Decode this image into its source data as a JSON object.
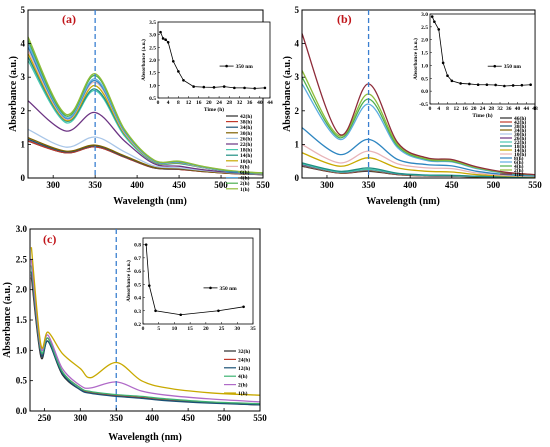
{
  "colors": {
    "dash_line": "#3a7fd0",
    "panel_label": "#c0151a"
  },
  "chart_data": [
    {
      "type": "line",
      "panel_label": "(a)",
      "xlabel": "Wavelength (nm)",
      "ylabel": "Absorbance (a.u.)",
      "xlim": [
        270,
        550
      ],
      "ylim": [
        0,
        5
      ],
      "xticks": [
        300,
        350,
        400,
        450,
        500,
        550
      ],
      "yticks": [
        0,
        1,
        2,
        3,
        4,
        5
      ],
      "marker_wavelength": 350,
      "legend_placement": "right",
      "series": [
        {
          "name": "42(h)",
          "color": "#2b2b2b",
          "values": [
            1.1,
            0.75,
            0.93,
            0.62,
            0.3,
            0.26,
            0.19,
            0.13,
            0.1
          ]
        },
        {
          "name": "38(h)",
          "color": "#c0392b",
          "values": [
            1.1,
            0.75,
            0.93,
            0.62,
            0.3,
            0.26,
            0.19,
            0.13,
            0.1
          ]
        },
        {
          "name": "34(h)",
          "color": "#1a5276",
          "values": [
            1.15,
            0.78,
            0.96,
            0.64,
            0.31,
            0.27,
            0.2,
            0.14,
            0.1
          ]
        },
        {
          "name": "30(h)",
          "color": "#7f6000",
          "values": [
            1.2,
            0.8,
            0.98,
            0.66,
            0.32,
            0.28,
            0.2,
            0.14,
            0.11
          ]
        },
        {
          "name": "26(h)",
          "color": "#a9c6e8",
          "values": [
            1.45,
            0.92,
            1.22,
            0.78,
            0.36,
            0.3,
            0.22,
            0.15,
            0.11
          ]
        },
        {
          "name": "22(h)",
          "color": "#6c3483",
          "values": [
            2.3,
            1.4,
            1.95,
            1.1,
            0.43,
            0.35,
            0.24,
            0.16,
            0.12
          ]
        },
        {
          "name": "18(h)",
          "color": "#48c9b0",
          "values": [
            3.5,
            1.65,
            2.6,
            1.25,
            0.47,
            0.43,
            0.3,
            0.18,
            0.13
          ]
        },
        {
          "name": "14(h)",
          "color": "#1f8f84",
          "values": [
            3.6,
            1.7,
            2.65,
            1.3,
            0.48,
            0.44,
            0.3,
            0.18,
            0.13
          ]
        },
        {
          "name": "10(h)",
          "color": "#c8a900",
          "values": [
            3.7,
            1.72,
            2.75,
            1.32,
            0.49,
            0.45,
            0.31,
            0.19,
            0.13
          ]
        },
        {
          "name": "8(h)",
          "color": "#e8b4b8",
          "values": [
            3.8,
            1.75,
            2.85,
            1.35,
            0.5,
            0.46,
            0.31,
            0.19,
            0.14
          ]
        },
        {
          "name": "6(h)",
          "color": "#2e86c1",
          "values": [
            3.9,
            1.78,
            2.9,
            1.38,
            0.51,
            0.47,
            0.32,
            0.19,
            0.14
          ]
        },
        {
          "name": "4(h)",
          "color": "#5dade2",
          "values": [
            4.0,
            1.8,
            2.95,
            1.4,
            0.52,
            0.48,
            0.32,
            0.2,
            0.14
          ]
        },
        {
          "name": "2(h)",
          "color": "#4caf50",
          "values": [
            4.1,
            1.85,
            3.05,
            1.43,
            0.53,
            0.49,
            0.33,
            0.2,
            0.15
          ]
        },
        {
          "name": "1(h)",
          "color": "#8fbc3a",
          "values": [
            4.2,
            1.9,
            3.1,
            1.45,
            0.54,
            0.5,
            0.34,
            0.21,
            0.15
          ]
        }
      ],
      "x": [
        270,
        315,
        350,
        385,
        420,
        450,
        480,
        515,
        550
      ],
      "inset": {
        "xlabel": "Time (h)",
        "ylabel": "Absorbance (a.u.)",
        "xlim": [
          0,
          44
        ],
        "ylim": [
          0.5,
          3.5
        ],
        "xticks": [
          0,
          4,
          8,
          12,
          16,
          20,
          24,
          28,
          32,
          36,
          40,
          44
        ],
        "yticks": [
          0.5,
          1.0,
          1.5,
          2.0,
          2.5,
          3.0,
          3.5
        ],
        "legend": "350 nm",
        "x": [
          1,
          2,
          3,
          4,
          6,
          8,
          10,
          14,
          18,
          22,
          26,
          30,
          34,
          38,
          42
        ],
        "values": [
          3.1,
          2.85,
          2.8,
          2.7,
          1.95,
          1.55,
          1.2,
          0.95,
          0.93,
          0.92,
          0.95,
          0.9,
          0.9,
          0.88,
          0.9
        ]
      }
    },
    {
      "type": "line",
      "panel_label": "(b)",
      "xlabel": "Wavelength (nm)",
      "ylabel": "Absorbance (a.u.)",
      "xlim": [
        270,
        550
      ],
      "ylim": [
        0,
        5
      ],
      "xticks": [
        300,
        350,
        400,
        450,
        500,
        550
      ],
      "yticks": [
        0,
        1,
        2,
        3,
        4,
        5
      ],
      "marker_wavelength": 350,
      "legend_placement": "right",
      "series": [
        {
          "name": "46(h)",
          "color": "#2b2b2b",
          "values": [
            0.35,
            0.15,
            0.2,
            0.1,
            0.06,
            0.05,
            0.04,
            0.03,
            0.02
          ]
        },
        {
          "name": "42(h)",
          "color": "#c0392b",
          "values": [
            0.36,
            0.15,
            0.21,
            0.1,
            0.06,
            0.05,
            0.04,
            0.03,
            0.02
          ]
        },
        {
          "name": "38(h)",
          "color": "#1a5276",
          "values": [
            0.37,
            0.16,
            0.22,
            0.11,
            0.07,
            0.06,
            0.04,
            0.03,
            0.02
          ]
        },
        {
          "name": "34(h)",
          "color": "#7f6000",
          "values": [
            0.38,
            0.16,
            0.23,
            0.11,
            0.07,
            0.06,
            0.04,
            0.03,
            0.02
          ]
        },
        {
          "name": "30(h)",
          "color": "#a9c6e8",
          "values": [
            0.39,
            0.17,
            0.24,
            0.12,
            0.07,
            0.06,
            0.05,
            0.03,
            0.02
          ]
        },
        {
          "name": "26(h)",
          "color": "#6c3483",
          "values": [
            0.4,
            0.17,
            0.25,
            0.12,
            0.08,
            0.07,
            0.05,
            0.03,
            0.02
          ]
        },
        {
          "name": "22(h)",
          "color": "#48c9b0",
          "values": [
            0.42,
            0.18,
            0.26,
            0.13,
            0.08,
            0.07,
            0.05,
            0.04,
            0.03
          ]
        },
        {
          "name": "18(h)",
          "color": "#1f8f84",
          "values": [
            0.45,
            0.2,
            0.3,
            0.14,
            0.09,
            0.08,
            0.05,
            0.04,
            0.03
          ]
        },
        {
          "name": "14(h)",
          "color": "#c8a900",
          "values": [
            0.75,
            0.35,
            0.6,
            0.3,
            0.2,
            0.18,
            0.1,
            0.06,
            0.04
          ]
        },
        {
          "name": "10(h)",
          "color": "#e8b4b8",
          "values": [
            1.0,
            0.45,
            0.8,
            0.42,
            0.3,
            0.28,
            0.15,
            0.08,
            0.05
          ]
        },
        {
          "name": "8(h)",
          "color": "#2e86c1",
          "values": [
            1.5,
            0.7,
            1.15,
            0.55,
            0.4,
            0.36,
            0.2,
            0.1,
            0.06
          ]
        },
        {
          "name": "6(h)",
          "color": "#5dade2",
          "values": [
            2.8,
            1.15,
            2.2,
            0.9,
            0.52,
            0.48,
            0.28,
            0.14,
            0.08
          ]
        },
        {
          "name": "4(h)",
          "color": "#4caf50",
          "values": [
            3.0,
            1.2,
            2.35,
            0.95,
            0.55,
            0.5,
            0.3,
            0.15,
            0.09
          ]
        },
        {
          "name": "2(h)",
          "color": "#8fbc3a",
          "values": [
            3.2,
            1.25,
            2.5,
            1.0,
            0.57,
            0.52,
            0.31,
            0.16,
            0.1
          ]
        },
        {
          "name": "1(h)",
          "color": "#8e2c3a",
          "values": [
            4.3,
            1.3,
            2.8,
            1.05,
            0.6,
            0.55,
            0.33,
            0.17,
            0.1
          ]
        }
      ],
      "x": [
        270,
        315,
        350,
        385,
        420,
        450,
        480,
        515,
        550
      ],
      "inset": {
        "xlabel": "Time (h)",
        "ylabel": "Absorbance (a.u.)",
        "xlim": [
          0,
          48
        ],
        "ylim": [
          -0.5,
          3.0
        ],
        "xticks": [
          0,
          4,
          8,
          12,
          16,
          20,
          24,
          28,
          32,
          36,
          40,
          44,
          48
        ],
        "yticks": [
          -0.5,
          0.0,
          0.5,
          1.0,
          1.5,
          2.0,
          2.5,
          3.0
        ],
        "legend": "350 nm",
        "x": [
          1,
          2,
          4,
          6,
          8,
          10,
          14,
          18,
          22,
          26,
          30,
          34,
          38,
          42,
          46
        ],
        "values": [
          2.9,
          2.7,
          2.4,
          1.1,
          0.6,
          0.4,
          0.3,
          0.28,
          0.25,
          0.25,
          0.24,
          0.2,
          0.22,
          0.23,
          0.25
        ]
      }
    },
    {
      "type": "line",
      "panel_label": "(c)",
      "xlabel": "Wavelength (nm)",
      "ylabel": "Absorbance (a.u.)",
      "xlim": [
        230,
        550
      ],
      "ylim": [
        0,
        3.0
      ],
      "xticks": [
        250,
        300,
        350,
        400,
        450,
        500,
        550
      ],
      "yticks": [
        0.0,
        0.5,
        1.0,
        1.5,
        2.0,
        2.5,
        3.0
      ],
      "marker_wavelength": 350,
      "legend_placement": "right",
      "series": [
        {
          "name": "32(h)",
          "color": "#2b2b2b",
          "values": [
            2.2,
            0.9,
            1.15,
            0.6,
            0.35,
            0.3,
            0.25,
            0.22,
            0.18,
            0.14,
            0.1
          ]
        },
        {
          "name": "24(h)",
          "color": "#c0392b",
          "values": [
            2.25,
            0.95,
            1.2,
            0.65,
            0.38,
            0.3,
            0.25,
            0.22,
            0.18,
            0.14,
            0.1
          ]
        },
        {
          "name": "12(h)",
          "color": "#1a5276",
          "values": [
            2.3,
            0.95,
            1.15,
            0.62,
            0.35,
            0.29,
            0.24,
            0.21,
            0.17,
            0.13,
            0.1
          ]
        },
        {
          "name": "4(h)",
          "color": "#3cb371",
          "values": [
            2.4,
            1.0,
            1.2,
            0.65,
            0.38,
            0.32,
            0.27,
            0.24,
            0.2,
            0.15,
            0.12
          ]
        },
        {
          "name": "2(h)",
          "color": "#b06ac8",
          "values": [
            2.5,
            1.05,
            1.25,
            0.7,
            0.42,
            0.38,
            0.48,
            0.33,
            0.26,
            0.2,
            0.15
          ]
        },
        {
          "name": "1(h)",
          "color": "#c8a900",
          "values": [
            2.7,
            1.1,
            1.3,
            0.95,
            0.7,
            0.55,
            0.8,
            0.5,
            0.38,
            0.3,
            0.26
          ]
        }
      ],
      "x": [
        232,
        245,
        255,
        275,
        300,
        315,
        350,
        385,
        420,
        480,
        550
      ],
      "inset": {
        "xlabel": "",
        "ylabel": "Absorbance (a.u.)",
        "xlim": [
          0,
          35
        ],
        "ylim": [
          0.2,
          0.85
        ],
        "xticks": [
          0,
          5,
          10,
          15,
          20,
          25,
          30,
          35
        ],
        "yticks": [
          0.2,
          0.3,
          0.4,
          0.5,
          0.6,
          0.7,
          0.8
        ],
        "legend": "350 nm",
        "x": [
          1,
          2,
          4,
          12,
          24,
          32
        ],
        "values": [
          0.8,
          0.49,
          0.3,
          0.27,
          0.3,
          0.33
        ]
      }
    }
  ]
}
